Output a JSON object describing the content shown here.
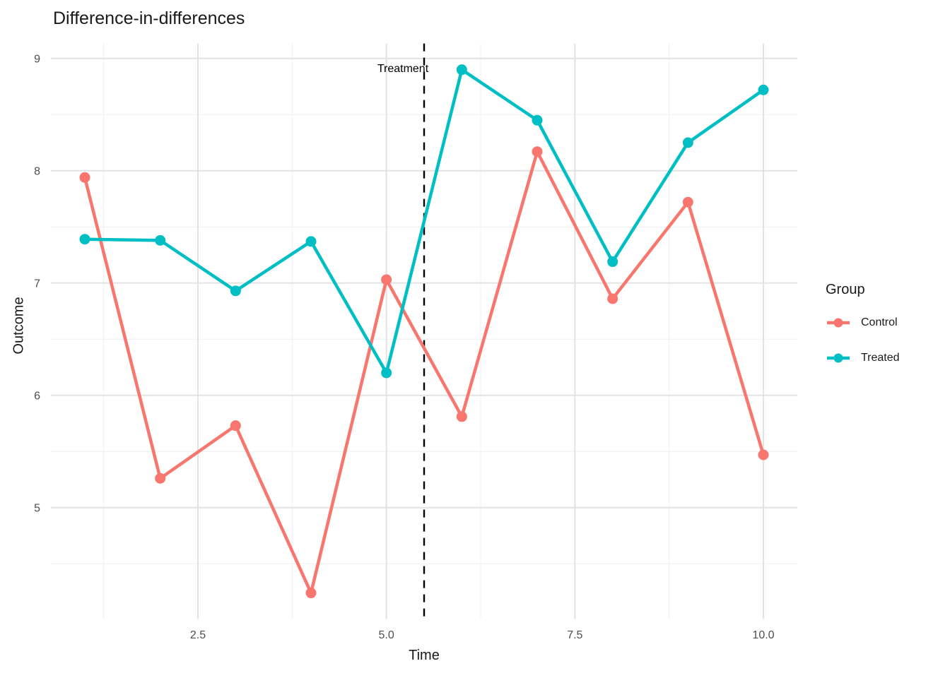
{
  "title": "Difference-in-differences",
  "chart_data": {
    "type": "line",
    "title": "Difference-in-differences",
    "xlabel": "Time",
    "ylabel": "Outcome",
    "x": [
      1,
      2,
      3,
      4,
      5,
      6,
      7,
      8,
      9,
      10
    ],
    "series": [
      {
        "name": "Control",
        "color": "#F8766D",
        "values": [
          7.94,
          5.26,
          5.73,
          4.24,
          7.03,
          5.81,
          8.17,
          6.86,
          7.72,
          5.47
        ]
      },
      {
        "name": "Treated",
        "color": "#00BFC4",
        "values": [
          7.39,
          7.38,
          6.93,
          7.37,
          6.2,
          8.9,
          8.45,
          7.19,
          8.25,
          8.72
        ]
      }
    ],
    "xlim": [
      0.55,
      10.45
    ],
    "ylim": [
      4.007,
      9.133
    ],
    "x_ticks": [
      2.5,
      5.0,
      7.5,
      10.0
    ],
    "x_tick_labels": [
      "2.5",
      "5.0",
      "7.5",
      "10.0"
    ],
    "y_ticks": [
      5,
      6,
      7,
      8,
      9
    ],
    "y_tick_labels": [
      "5",
      "6",
      "7",
      "8",
      "9"
    ],
    "x_minor": [
      1.25,
      3.75,
      6.25,
      8.75
    ],
    "y_minor": [
      4.5,
      5.5,
      6.5,
      7.5,
      8.5
    ],
    "grid": true,
    "vline": {
      "x": 5.5,
      "style": "dashed",
      "color": "#000000"
    },
    "annotation": {
      "text": "Treatment",
      "x": 5.22,
      "y": 8.9
    },
    "legend": {
      "position": "right",
      "title": "Group",
      "items": [
        {
          "label": "Control",
          "color": "#F8766D"
        },
        {
          "label": "Treated",
          "color": "#00BFC4"
        }
      ]
    },
    "colors": {
      "grid_major": "#E3E3E3",
      "grid_minor": "#EFEFEF",
      "tick_text": "#4D4D4D"
    }
  }
}
